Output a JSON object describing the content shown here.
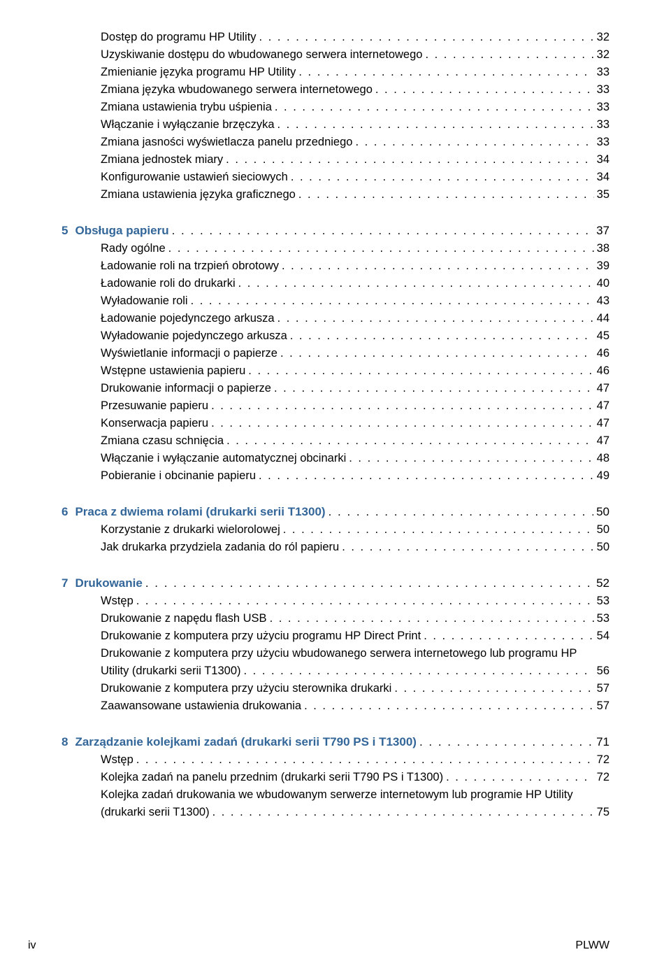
{
  "dots": ". . . . . . . . . . . . . . . . . . . . . . . . . . . . . . . . . . . . . . . . . . . . . . . . . . . . . . . . . . . . . . . . . . . . . . . . . . . . . . . . . . . . . . . . . . . . . . . . . . . . . . . . . . . . . . . . . . . . . . . . . . . . . . . . . . . . . . . . . . . . . . . . . . . . . . . . . . . . . . . . . . . . . . . . . . . . . . . . . . . . . . . . . . . . . . . . . . . . . . . . . . . . . . . . . . . . . . . . . . . . . . . . . . . .",
  "footer": {
    "left": "iv",
    "right": "PLWW"
  },
  "sections": [
    {
      "heading": null,
      "items": [
        {
          "label": "Dostęp do programu HP Utility",
          "page": "32"
        },
        {
          "label": "Uzyskiwanie dostępu do wbudowanego serwera internetowego",
          "page": "32"
        },
        {
          "label": "Zmienianie języka programu HP Utility",
          "page": "33"
        },
        {
          "label": "Zmiana języka wbudowanego serwera internetowego",
          "page": "33"
        },
        {
          "label": "Zmiana ustawienia trybu uśpienia",
          "page": "33"
        },
        {
          "label": "Włączanie i wyłączanie brzęczyka",
          "page": "33"
        },
        {
          "label": "Zmiana jasności wyświetlacza panelu przedniego",
          "page": "33"
        },
        {
          "label": "Zmiana jednostek miary",
          "page": "34"
        },
        {
          "label": "Konfigurowanie ustawień sieciowych",
          "page": "34"
        },
        {
          "label": "Zmiana ustawienia języka graficznego",
          "page": "35"
        }
      ]
    },
    {
      "heading": {
        "num": "5",
        "title": "Obsługa papieru",
        "page": "37"
      },
      "items": [
        {
          "label": "Rady ogólne",
          "page": "38"
        },
        {
          "label": "Ładowanie roli na trzpień obrotowy",
          "page": "39"
        },
        {
          "label": "Ładowanie roli do drukarki",
          "page": "40"
        },
        {
          "label": "Wyładowanie roli",
          "page": "43"
        },
        {
          "label": "Ładowanie pojedynczego arkusza",
          "page": "44"
        },
        {
          "label": "Wyładowanie pojedynczego arkusza",
          "page": "45"
        },
        {
          "label": "Wyświetlanie informacji o papierze",
          "page": "46"
        },
        {
          "label": "Wstępne ustawienia papieru",
          "page": "46"
        },
        {
          "label": "Drukowanie informacji o papierze",
          "page": "47"
        },
        {
          "label": "Przesuwanie papieru",
          "page": "47"
        },
        {
          "label": "Konserwacja papieru",
          "page": "47"
        },
        {
          "label": "Zmiana czasu schnięcia",
          "page": "47"
        },
        {
          "label": "Włączanie i wyłączanie automatycznej obcinarki",
          "page": "48"
        },
        {
          "label": "Pobieranie i obcinanie papieru",
          "page": "49"
        }
      ]
    },
    {
      "heading": {
        "num": "6",
        "title": "Praca z dwiema rolami (drukarki serii T1300)",
        "page": "50"
      },
      "items": [
        {
          "label": "Korzystanie z drukarki wielorolowej",
          "page": "50"
        },
        {
          "label": "Jak drukarka przydziela zadania do ról papieru",
          "page": "50"
        }
      ]
    },
    {
      "heading": {
        "num": "7",
        "title": "Drukowanie",
        "page": "52"
      },
      "items": [
        {
          "label": "Wstęp",
          "page": "53"
        },
        {
          "label": "Drukowanie z napędu flash USB",
          "page": "53"
        },
        {
          "label": "Drukowanie z komputera przy użyciu programu HP Direct Print",
          "page": "54"
        },
        {
          "label": "Drukowanie z komputera przy użyciu wbudowanego serwera internetowego lub programu HP Utility (drukarki serii T1300)",
          "page": "56",
          "wrap": true
        },
        {
          "label": "Drukowanie z komputera przy użyciu sterownika drukarki",
          "page": "57"
        },
        {
          "label": "Zaawansowane ustawienia drukowania",
          "page": "57"
        }
      ]
    },
    {
      "heading": {
        "num": "8",
        "title": "Zarządzanie kolejkami zadań (drukarki serii T790 PS i T1300)",
        "page": "71"
      },
      "items": [
        {
          "label": "Wstęp",
          "page": "72"
        },
        {
          "label": "Kolejka zadań na panelu przednim (drukarki serii T790 PS i T1300)",
          "page": "72"
        },
        {
          "label": "Kolejka zadań drukowania we wbudowanym serwerze internetowym lub programie HP Utility (drukarki serii T1300)",
          "page": "75",
          "wrap": true
        }
      ]
    }
  ]
}
